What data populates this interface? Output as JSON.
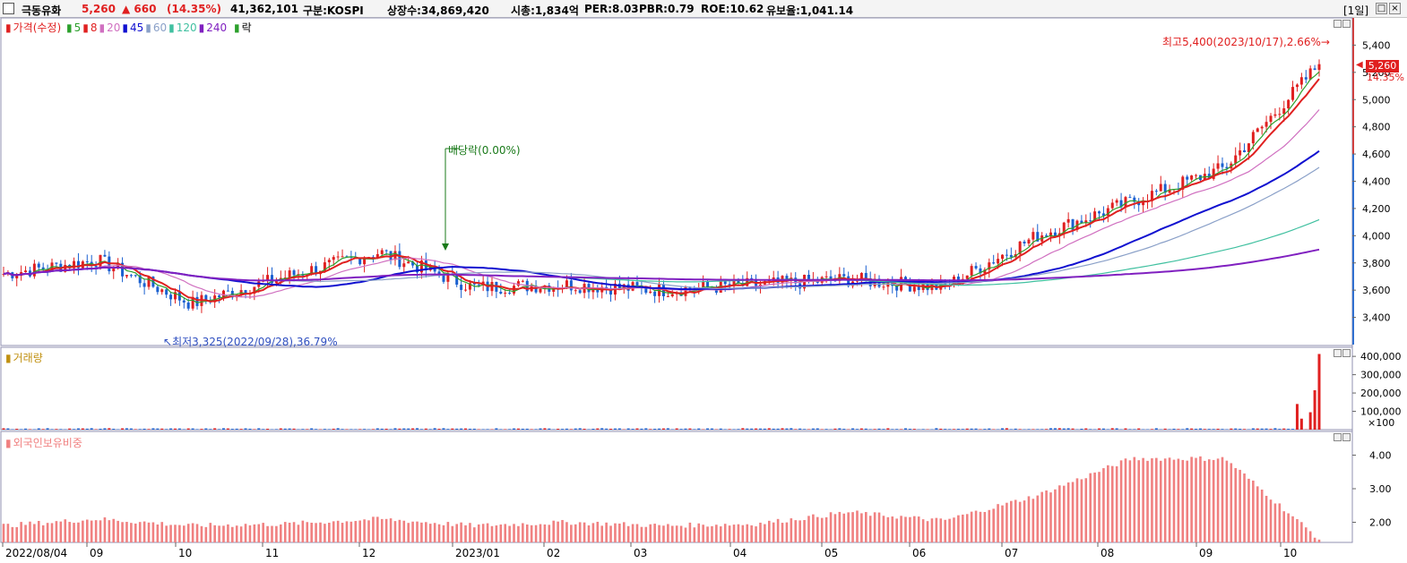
{
  "header": {
    "stock_name": "극동유화",
    "price": "5,260",
    "change": "▲ 660",
    "change_pct": "(14.35%)",
    "volume": "41,362,101",
    "market": "구분:KOSPI",
    "shares": "상장수:34,869,420",
    "market_cap": "시총:1,834억",
    "per": "PER:8.03",
    "pbr": "PBR:0.79",
    "roe": "ROE:10.62",
    "retention": "유보율:1,041.14",
    "period": "[1일]"
  },
  "price_panel": {
    "legend_title": "가격(수정)",
    "ma_labels": [
      "5",
      "8",
      "20",
      "45",
      "60",
      "120",
      "240"
    ],
    "ma_colors": [
      "#2ca02c",
      "#e02020",
      "#d070c0",
      "#1010d0",
      "#8aa0c8",
      "#40c0a0",
      "#8020c0"
    ],
    "legend_suffix": "락",
    "annotation_high": "최고5,400(2023/10/17),2.66%",
    "annotation_low": "최저3,325(2022/09/28),36.79%",
    "annotation_div": "배당락(0.00%)",
    "current_price": "5,260",
    "current_pct": "14.35%"
  },
  "volume_panel": {
    "legend_title": "거래량",
    "unit": "×100"
  },
  "foreign_panel": {
    "legend_title": "외국인보유비중"
  },
  "x_axis_labels": [
    "2022/08/04",
    "09",
    "10",
    "11",
    "12",
    "2023/01",
    "02",
    "03",
    "04",
    "05",
    "06",
    "07",
    "08",
    "09",
    "10"
  ],
  "colors": {
    "up": "#e02020",
    "down": "#1a60d0",
    "volume_up": "#e02020",
    "foreign": "#f08080"
  },
  "chart_data": [
    {
      "type": "candlestick",
      "title": "",
      "ylim": [
        3200,
        5600
      ],
      "y_ticks": [
        3400,
        3600,
        3800,
        4000,
        4200,
        4400,
        4600,
        4800,
        5000,
        5200,
        5400
      ],
      "y_tick_labels": [
        "3,400",
        "3,600",
        "3,800",
        "4,000",
        "4,200",
        "4,400",
        "4,600",
        "4,800",
        "5,000",
        "5,200",
        "5,400"
      ],
      "key_points": [
        {
          "label": "최저",
          "date": "2022/09/28",
          "value": 3325
        },
        {
          "label": "최고",
          "date": "2023/10/17",
          "value": 5400
        },
        {
          "label": "last",
          "value": 5260
        }
      ],
      "close_path_months": [
        "2022/08",
        "2022/09",
        "2022/10",
        "2022/11",
        "2022/12",
        "2023/01",
        "2023/02",
        "2023/03",
        "2023/04",
        "2023/05",
        "2023/06",
        "2023/07",
        "2023/08",
        "2023/09",
        "2023/10"
      ],
      "close_approx": [
        3720,
        3820,
        3500,
        3700,
        3880,
        3620,
        3640,
        3600,
        3640,
        3680,
        3620,
        4000,
        4250,
        4500,
        5260
      ]
    },
    {
      "type": "bar",
      "title": "",
      "y_ticks": [
        100000,
        200000,
        300000,
        400000
      ],
      "y_tick_labels": [
        "100,000",
        "200,000",
        "300,000",
        "400,000"
      ],
      "ylim": [
        0,
        430000
      ]
    },
    {
      "type": "bar",
      "title": "",
      "y_ticks": [
        2.0,
        3.0,
        4.0
      ],
      "y_tick_labels": [
        "2.00",
        "3.00",
        "4.00"
      ],
      "ylim": [
        1.4,
        4.6
      ]
    }
  ]
}
